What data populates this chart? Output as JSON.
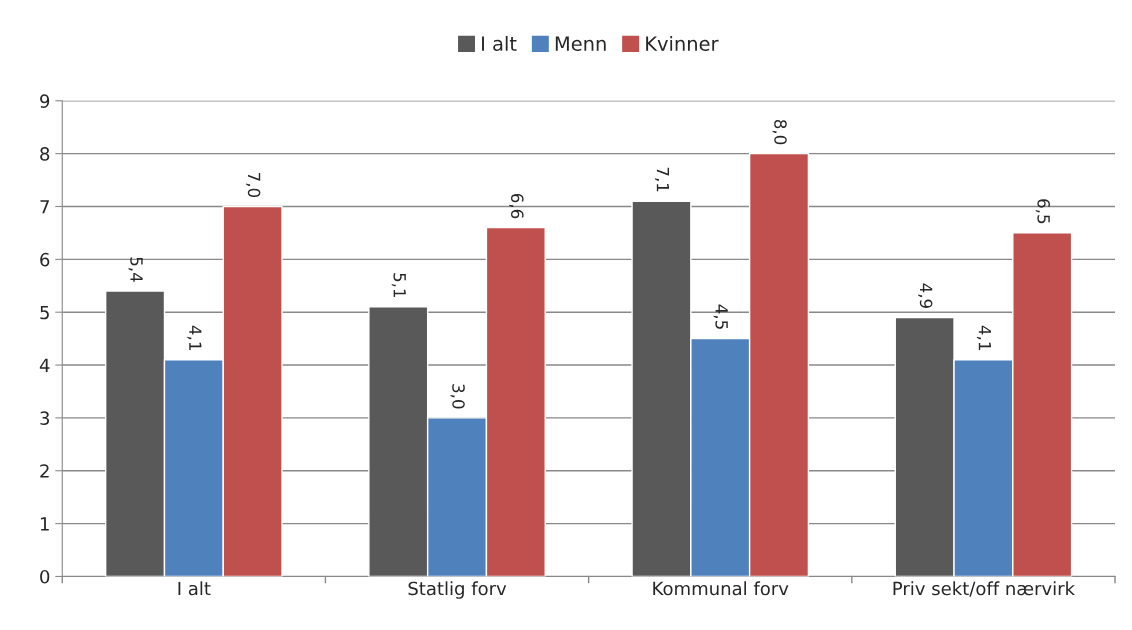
{
  "chart_data": {
    "type": "bar",
    "categories": [
      "I alt",
      "Statlig forv",
      "Kommunal forv",
      "Priv sekt/off nærvirk"
    ],
    "series": [
      {
        "name": "I alt",
        "color": "#595959",
        "values": [
          5.4,
          5.1,
          7.1,
          4.9
        ],
        "value_labels": [
          "5,4",
          "5,1",
          "7,1",
          "4,9"
        ]
      },
      {
        "name": "Menn",
        "color": "#4f81bd",
        "values": [
          4.1,
          3.0,
          4.5,
          4.1
        ],
        "value_labels": [
          "4,1",
          "3,0",
          "4,5",
          "4,1"
        ]
      },
      {
        "name": "Kvinner",
        "color": "#c0504d",
        "values": [
          7.0,
          6.6,
          8.0,
          6.5
        ],
        "value_labels": [
          "7,0",
          "6,6",
          "8,0",
          "6,5"
        ]
      }
    ],
    "ylim": [
      0,
      9
    ],
    "yticks": [
      0,
      1,
      2,
      3,
      4,
      5,
      6,
      7,
      8,
      9
    ],
    "grid": "y",
    "legend": "top"
  }
}
